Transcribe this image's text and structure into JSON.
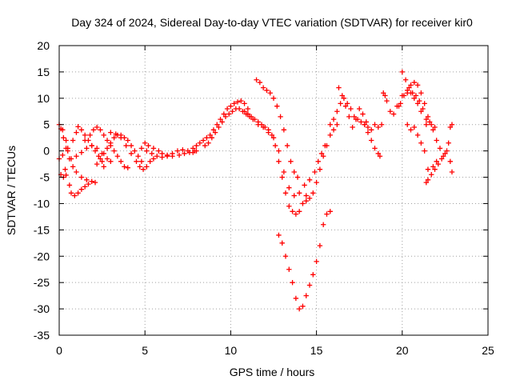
{
  "chart_data": {
    "type": "scatter",
    "title": "Day 324 of 2024, Sidereal Day-to-day VTEC variation (SDTVAR) for receiver kir0",
    "xlabel": "GPS time / hours",
    "ylabel": "SDTVAR / TECUs",
    "xlim": [
      0,
      25
    ],
    "ylim": [
      -35,
      20
    ],
    "xticks": [
      "0",
      "5",
      "10",
      "15",
      "20",
      "25"
    ],
    "yticks": [
      "20",
      "15",
      "10",
      "5",
      "0",
      "-5",
      "-10",
      "-15",
      "-20",
      "-25",
      "-30",
      "-35"
    ],
    "grid": true,
    "marker": "plus",
    "color": "#ff0000",
    "series": [
      {
        "points": [
          [
            0.0,
            5.0
          ],
          [
            0.1,
            4.2
          ],
          [
            0.25,
            2.5
          ],
          [
            0.4,
            0.5
          ],
          [
            0.6,
            -1.5
          ],
          [
            0.8,
            -3.0
          ],
          [
            1.0,
            -4.0
          ],
          [
            1.3,
            -5.0
          ],
          [
            1.6,
            -5.5
          ],
          [
            1.9,
            -5.8
          ],
          [
            2.1,
            -6.0
          ],
          [
            0.0,
            -1.5
          ],
          [
            0.2,
            -0.8
          ],
          [
            0.5,
            0.5
          ],
          [
            0.8,
            2.0
          ],
          [
            1.0,
            3.5
          ],
          [
            1.1,
            4.6
          ],
          [
            1.3,
            4.0
          ],
          [
            1.5,
            3.0
          ],
          [
            1.7,
            2.0
          ],
          [
            1.9,
            1.0
          ],
          [
            2.1,
            0.0
          ],
          [
            2.3,
            -1.0
          ],
          [
            2.5,
            -2.0
          ],
          [
            2.6,
            -3.0
          ],
          [
            0.1,
            -4.5
          ],
          [
            0.25,
            -5.0
          ],
          [
            0.35,
            -3.5
          ],
          [
            0.4,
            -4.6
          ],
          [
            0.6,
            -6.5
          ],
          [
            0.7,
            -8.0
          ],
          [
            0.9,
            -8.5
          ],
          [
            1.1,
            -8.0
          ],
          [
            1.3,
            -7.3
          ],
          [
            1.5,
            -6.8
          ],
          [
            1.7,
            -6.3
          ],
          [
            0.2,
            4.0
          ],
          [
            0.4,
            2.0
          ],
          [
            0.5,
            0.0
          ],
          [
            0.7,
            -1.5
          ],
          [
            1.0,
            -1.0
          ],
          [
            1.3,
            -0.3
          ],
          [
            1.6,
            0.5
          ],
          [
            1.9,
            1.0
          ],
          [
            2.2,
            0.5
          ],
          [
            2.5,
            -0.5
          ],
          [
            2.8,
            -1.5
          ],
          [
            3.0,
            -2.0
          ],
          [
            1.5,
            2.0
          ],
          [
            1.8,
            3.0
          ],
          [
            2.0,
            4.0
          ],
          [
            2.2,
            4.5
          ],
          [
            2.4,
            4.0
          ],
          [
            2.6,
            3.0
          ],
          [
            2.8,
            2.0
          ],
          [
            3.0,
            1.0
          ],
          [
            3.2,
            0.0
          ],
          [
            3.4,
            -1.0
          ],
          [
            3.6,
            -2.0
          ],
          [
            3.8,
            -3.0
          ],
          [
            4.0,
            -3.2
          ],
          [
            2.2,
            -2.5
          ],
          [
            2.4,
            -1.5
          ],
          [
            2.6,
            -0.5
          ],
          [
            2.8,
            0.5
          ],
          [
            3.0,
            1.5
          ],
          [
            3.2,
            2.5
          ],
          [
            3.4,
            3.0
          ],
          [
            3.6,
            3.0
          ],
          [
            3.8,
            2.5
          ],
          [
            4.0,
            2.0
          ],
          [
            4.2,
            1.0
          ],
          [
            4.4,
            0.0
          ],
          [
            4.6,
            -1.0
          ],
          [
            4.8,
            -2.0
          ],
          [
            3.0,
            3.5
          ],
          [
            3.3,
            3.2
          ],
          [
            3.6,
            2.5
          ],
          [
            3.9,
            1.0
          ],
          [
            4.2,
            -0.5
          ],
          [
            4.5,
            -2.0
          ],
          [
            4.7,
            -3.0
          ],
          [
            4.9,
            -3.5
          ],
          [
            5.1,
            -3.0
          ],
          [
            5.3,
            -2.0
          ],
          [
            5.5,
            -1.5
          ],
          [
            4.8,
            0.5
          ],
          [
            5.0,
            1.5
          ],
          [
            5.2,
            1.0
          ],
          [
            5.5,
            0.5
          ],
          [
            5.8,
            0.0
          ],
          [
            6.0,
            -0.5
          ],
          [
            6.3,
            -0.8
          ],
          [
            6.6,
            -1.0
          ],
          [
            7.0,
            -0.8
          ],
          [
            7.3,
            -0.5
          ],
          [
            7.6,
            -0.3
          ],
          [
            7.9,
            0.0
          ],
          [
            5.1,
            0.0
          ],
          [
            5.4,
            -0.5
          ],
          [
            5.7,
            -1.0
          ],
          [
            6.0,
            -1.2
          ],
          [
            6.3,
            -1.0
          ],
          [
            6.6,
            -0.5
          ],
          [
            6.9,
            0.0
          ],
          [
            7.2,
            0.2
          ],
          [
            7.5,
            0.0
          ],
          [
            7.8,
            -0.3
          ],
          [
            8.0,
            0.0
          ],
          [
            7.8,
            0.5
          ],
          [
            8.0,
            1.0
          ],
          [
            8.2,
            1.5
          ],
          [
            8.4,
            2.0
          ],
          [
            8.6,
            2.5
          ],
          [
            8.8,
            3.0
          ],
          [
            9.0,
            4.0
          ],
          [
            9.2,
            5.0
          ],
          [
            9.4,
            6.0
          ],
          [
            9.6,
            7.0
          ],
          [
            9.8,
            8.0
          ],
          [
            10.0,
            8.5
          ],
          [
            10.2,
            9.0
          ],
          [
            10.4,
            9.3
          ],
          [
            10.6,
            9.5
          ],
          [
            10.8,
            9.0
          ],
          [
            11.0,
            8.0
          ],
          [
            8.5,
            1.0
          ],
          [
            8.7,
            1.5
          ],
          [
            8.9,
            2.5
          ],
          [
            9.1,
            3.5
          ],
          [
            9.3,
            4.5
          ],
          [
            9.5,
            5.5
          ],
          [
            9.7,
            6.5
          ],
          [
            9.9,
            7.0
          ],
          [
            10.1,
            7.5
          ],
          [
            10.3,
            8.0
          ],
          [
            10.5,
            8.0
          ],
          [
            10.7,
            7.5
          ],
          [
            10.9,
            7.0
          ],
          [
            11.1,
            6.5
          ],
          [
            10.8,
            7.5
          ],
          [
            11.0,
            7.0
          ],
          [
            11.2,
            6.5
          ],
          [
            11.4,
            6.0
          ],
          [
            11.6,
            5.5
          ],
          [
            11.8,
            5.0
          ],
          [
            12.0,
            4.5
          ],
          [
            12.2,
            4.0
          ],
          [
            12.4,
            3.0
          ],
          [
            12.6,
            1.0
          ],
          [
            12.8,
            -2.0
          ],
          [
            13.0,
            -5.0
          ],
          [
            13.2,
            -8.0
          ],
          [
            13.4,
            -10.5
          ],
          [
            13.6,
            -11.5
          ],
          [
            13.8,
            -12.0
          ],
          [
            14.0,
            -11.5
          ],
          [
            14.2,
            -10.0
          ],
          [
            14.4,
            -8.5
          ],
          [
            11.0,
            7.0
          ],
          [
            11.3,
            6.0
          ],
          [
            11.6,
            5.0
          ],
          [
            11.9,
            4.5
          ],
          [
            12.2,
            3.5
          ],
          [
            12.5,
            2.5
          ],
          [
            12.8,
            0.0
          ],
          [
            13.1,
            -4.0
          ],
          [
            13.4,
            -7.0
          ],
          [
            13.7,
            -8.5
          ],
          [
            14.0,
            -8.0
          ],
          [
            14.3,
            -6.5
          ],
          [
            14.6,
            -5.5
          ],
          [
            14.9,
            -4.0
          ],
          [
            15.1,
            -2.0
          ],
          [
            15.3,
            -0.5
          ],
          [
            15.5,
            1.0
          ],
          [
            11.5,
            13.5
          ],
          [
            11.7,
            13.0
          ],
          [
            11.9,
            12.0
          ],
          [
            12.1,
            11.5
          ],
          [
            12.3,
            11.0
          ],
          [
            12.5,
            10.0
          ],
          [
            12.7,
            8.5
          ],
          [
            12.9,
            6.5
          ],
          [
            13.1,
            4.0
          ],
          [
            13.3,
            1.0
          ],
          [
            13.5,
            -2.0
          ],
          [
            13.7,
            -4.0
          ],
          [
            13.9,
            -5.0
          ],
          [
            12.8,
            -16.0
          ],
          [
            13.0,
            -17.5
          ],
          [
            13.2,
            -20.0
          ],
          [
            13.4,
            -22.5
          ],
          [
            13.6,
            -25.0
          ],
          [
            13.8,
            -28.0
          ],
          [
            14.0,
            -30.0
          ],
          [
            14.2,
            -29.5
          ],
          [
            14.4,
            -27.5
          ],
          [
            14.6,
            -25.5
          ],
          [
            14.8,
            -23.5
          ],
          [
            15.0,
            -21.0
          ],
          [
            15.2,
            -18.0
          ],
          [
            15.4,
            -14.0
          ],
          [
            15.6,
            -12.0
          ],
          [
            15.8,
            -11.5
          ],
          [
            14.4,
            -9.5
          ],
          [
            14.6,
            -9.0
          ],
          [
            14.8,
            -8.0
          ],
          [
            15.0,
            -6.0
          ],
          [
            15.2,
            -3.5
          ],
          [
            15.4,
            -1.0
          ],
          [
            15.6,
            1.0
          ],
          [
            15.8,
            3.0
          ],
          [
            16.0,
            4.0
          ],
          [
            16.2,
            5.0
          ],
          [
            15.8,
            5.0
          ],
          [
            16.0,
            6.0
          ],
          [
            16.2,
            7.5
          ],
          [
            16.4,
            9.0
          ],
          [
            16.6,
            10.0
          ],
          [
            16.8,
            9.0
          ],
          [
            17.0,
            8.0
          ],
          [
            17.2,
            6.5
          ],
          [
            17.4,
            6.0
          ],
          [
            17.6,
            5.5
          ],
          [
            17.8,
            5.0
          ],
          [
            18.0,
            4.5
          ],
          [
            18.2,
            4.0
          ],
          [
            18.4,
            5.0
          ],
          [
            18.6,
            4.5
          ],
          [
            18.8,
            5.0
          ],
          [
            16.3,
            12.0
          ],
          [
            16.5,
            10.5
          ],
          [
            16.7,
            8.5
          ],
          [
            16.9,
            6.5
          ],
          [
            17.1,
            4.5
          ],
          [
            17.3,
            6.0
          ],
          [
            17.5,
            8.0
          ],
          [
            17.7,
            7.0
          ],
          [
            17.9,
            5.5
          ],
          [
            17.8,
            5.0
          ],
          [
            18.0,
            3.5
          ],
          [
            18.2,
            2.0
          ],
          [
            18.4,
            0.5
          ],
          [
            18.6,
            -0.5
          ],
          [
            18.7,
            -1.0
          ],
          [
            18.9,
            11.0
          ],
          [
            19.0,
            10.5
          ],
          [
            19.1,
            9.5
          ],
          [
            19.3,
            7.5
          ],
          [
            19.5,
            7.0
          ],
          [
            19.7,
            8.5
          ],
          [
            19.9,
            9.0
          ],
          [
            20.0,
            10.5
          ],
          [
            20.0,
            15.0
          ],
          [
            20.2,
            13.5
          ],
          [
            20.4,
            12.0
          ],
          [
            20.6,
            11.0
          ],
          [
            20.8,
            10.5
          ],
          [
            21.0,
            9.5
          ],
          [
            21.2,
            8.0
          ],
          [
            21.4,
            6.0
          ],
          [
            20.3,
            11.0
          ],
          [
            20.5,
            12.5
          ],
          [
            20.7,
            13.0
          ],
          [
            20.9,
            12.5
          ],
          [
            21.1,
            11.0
          ],
          [
            21.3,
            9.0
          ],
          [
            21.5,
            6.5
          ],
          [
            21.7,
            5.0
          ],
          [
            21.9,
            4.5
          ],
          [
            19.8,
            8.5
          ],
          [
            20.1,
            10.5
          ],
          [
            20.3,
            11.5
          ],
          [
            20.5,
            11.0
          ],
          [
            20.7,
            10.0
          ],
          [
            20.9,
            9.0
          ],
          [
            21.1,
            7.5
          ],
          [
            20.3,
            5.0
          ],
          [
            20.5,
            4.0
          ],
          [
            20.7,
            4.5
          ],
          [
            20.9,
            3.0
          ],
          [
            21.1,
            1.5
          ],
          [
            21.3,
            0.0
          ],
          [
            21.4,
            5.0
          ],
          [
            21.6,
            5.5
          ],
          [
            21.8,
            4.0
          ],
          [
            22.0,
            2.0
          ],
          [
            22.2,
            0.5
          ],
          [
            22.4,
            -1.0
          ],
          [
            22.6,
            0.0
          ],
          [
            22.8,
            -2.0
          ],
          [
            22.9,
            -4.0
          ],
          [
            21.5,
            -3.5
          ],
          [
            21.7,
            -4.5
          ],
          [
            21.9,
            -3.5
          ],
          [
            22.1,
            -2.5
          ],
          [
            22.3,
            -1.5
          ],
          [
            22.5,
            -0.5
          ],
          [
            22.7,
            1.5
          ],
          [
            22.8,
            4.5
          ],
          [
            22.9,
            5.0
          ],
          [
            21.4,
            -6.0
          ],
          [
            21.5,
            -5.5
          ],
          [
            21.8,
            -3.0
          ],
          [
            22.0,
            -2.0
          ]
        ]
      }
    ]
  }
}
